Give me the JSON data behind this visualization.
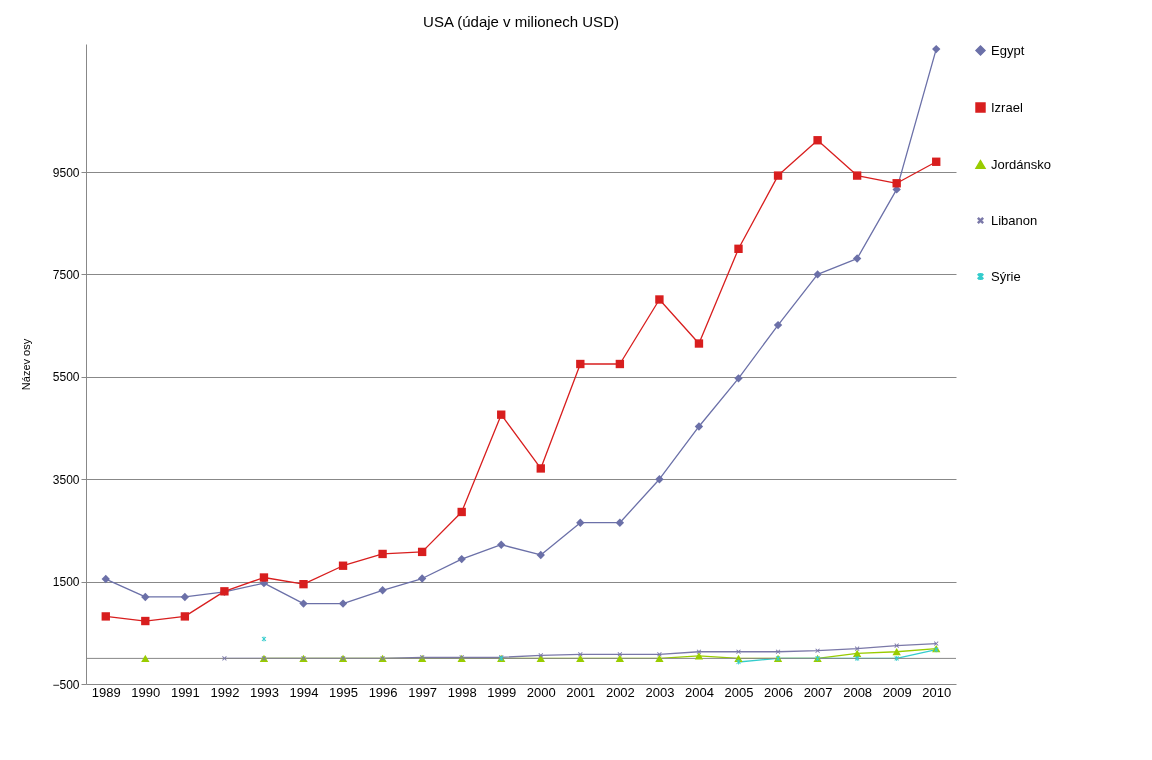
{
  "chart_data": {
    "type": "line",
    "title": "USA (údaje v milionech USD)",
    "ylabel": "Název osy",
    "categories": [
      "1989",
      "1990",
      "1991",
      "1992",
      "1993",
      "1994",
      "1995",
      "1996",
      "1997",
      "1998",
      "1999",
      "2000",
      "2001",
      "2002",
      "2003",
      "2004",
      "2005",
      "2006",
      "2007",
      "2008",
      "2009",
      "2010"
    ],
    "series": [
      {
        "name": "Egypt",
        "color": "#6b70a8",
        "marker": "diamond",
        "values": [
          1550,
          1200,
          1200,
          1300,
          1470,
          1070,
          1070,
          1330,
          1560,
          1940,
          2220,
          2020,
          2650,
          2650,
          3500,
          4530,
          5470,
          6510,
          7500,
          7810,
          9160,
          11900
        ]
      },
      {
        "name": "Izrael",
        "color": "#d81e1e",
        "marker": "square",
        "values": [
          820,
          730,
          820,
          1310,
          1580,
          1450,
          1810,
          2040,
          2080,
          2860,
          4760,
          3710,
          5750,
          5750,
          7010,
          6150,
          8000,
          9430,
          10120,
          9430,
          9280,
          9700
        ]
      },
      {
        "name": "Jordánsko",
        "color": "#99cc00",
        "marker": "triangle",
        "values": [
          null,
          0,
          null,
          null,
          0,
          0,
          0,
          0,
          0,
          0,
          0,
          0,
          0,
          0,
          0,
          50,
          0,
          0,
          0,
          100,
          130,
          190
        ]
      },
      {
        "name": "Libanon",
        "color": "#7a78a8",
        "marker": "cross",
        "values": [
          null,
          null,
          null,
          0,
          0,
          0,
          0,
          0,
          20,
          20,
          20,
          60,
          80,
          80,
          80,
          130,
          130,
          130,
          150,
          190,
          250,
          290
        ]
      },
      {
        "name": "Sýrie",
        "color": "#33cccc",
        "marker": "star",
        "values": [
          null,
          null,
          null,
          null,
          380,
          null,
          null,
          null,
          null,
          null,
          0,
          null,
          null,
          null,
          null,
          null,
          -70,
          0,
          0,
          0,
          0,
          170
        ]
      }
    ],
    "ylim": [
      -500,
      12000
    ],
    "yticks": [
      -500,
      1500,
      3500,
      5500,
      7500,
      9500
    ],
    "ref_lines": [
      {
        "axis": "y",
        "value": 0
      }
    ],
    "grid": "y",
    "legend": "right"
  }
}
